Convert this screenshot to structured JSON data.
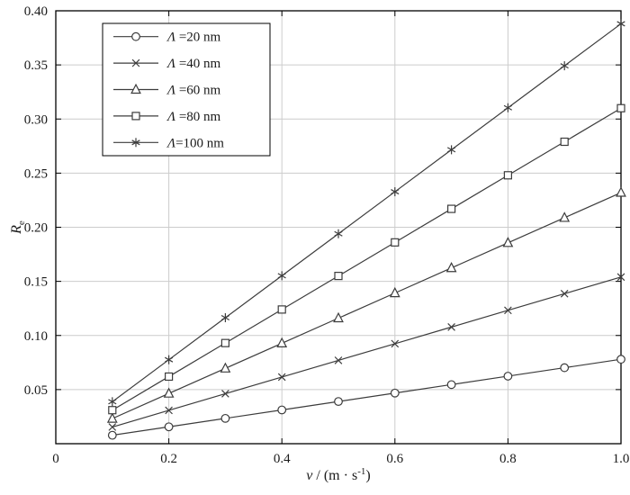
{
  "figure": {
    "background": "#ffffff"
  },
  "chart_data": {
    "type": "line",
    "title": "",
    "xlabel_parts": {
      "var": "v",
      "mid": " / (m · s",
      "sup": "-1",
      "end": ")"
    },
    "ylabel_parts": {
      "var": "R",
      "sub": "e"
    },
    "xlim": [
      0,
      1.0
    ],
    "ylim": [
      0,
      0.4
    ],
    "grid": true,
    "legend_position": "top-left",
    "xticks": [
      {
        "v": 0,
        "label": "0"
      },
      {
        "v": 0.2,
        "label": "0.2"
      },
      {
        "v": 0.4,
        "label": "0.4"
      },
      {
        "v": 0.6,
        "label": "0.6"
      },
      {
        "v": 0.8,
        "label": "0.8"
      },
      {
        "v": 1.0,
        "label": "1.0"
      }
    ],
    "yticks": [
      {
        "v": 0.05,
        "label": "0.05"
      },
      {
        "v": 0.1,
        "label": "0.10"
      },
      {
        "v": 0.15,
        "label": "0.15"
      },
      {
        "v": 0.2,
        "label": "0.20"
      },
      {
        "v": 0.25,
        "label": "0.25"
      },
      {
        "v": 0.3,
        "label": "0.30"
      },
      {
        "v": 0.35,
        "label": "0.35"
      },
      {
        "v": 0.4,
        "label": "0.40"
      }
    ],
    "x": [
      0.1,
      0.2,
      0.3,
      0.4,
      0.5,
      0.6,
      0.7,
      0.8,
      0.9,
      1.0
    ],
    "series": [
      {
        "name_symbol": "Λ",
        "name_rest": " =20 nm",
        "marker": "circle",
        "values": [
          0.0078,
          0.0156,
          0.0234,
          0.0312,
          0.039,
          0.0468,
          0.0546,
          0.0624,
          0.0702,
          0.078
        ]
      },
      {
        "name_symbol": "Λ",
        "name_rest": " =40 nm",
        "marker": "x-cross",
        "values": [
          0.0154,
          0.0308,
          0.0462,
          0.0616,
          0.077,
          0.0924,
          0.1078,
          0.1232,
          0.1386,
          0.154
        ]
      },
      {
        "name_symbol": "Λ",
        "name_rest": " =60 nm",
        "marker": "triangle-up",
        "values": [
          0.0232,
          0.0464,
          0.0696,
          0.0928,
          0.116,
          0.1392,
          0.1624,
          0.1856,
          0.2088,
          0.232
        ]
      },
      {
        "name_symbol": "Λ",
        "name_rest": " =80 nm",
        "marker": "square",
        "values": [
          0.031,
          0.062,
          0.093,
          0.124,
          0.155,
          0.186,
          0.217,
          0.248,
          0.279,
          0.31
        ]
      },
      {
        "name_symbol": "Λ",
        "name_rest": "=100 nm",
        "marker": "asterisk",
        "values": [
          0.0388,
          0.0776,
          0.1164,
          0.1552,
          0.194,
          0.2328,
          0.2716,
          0.3104,
          0.3492,
          0.388
        ]
      }
    ],
    "colors": {
      "line": "#3c3c3c",
      "grid": "#cccccc",
      "frame": "#000000",
      "legend_border": "#000000"
    }
  }
}
